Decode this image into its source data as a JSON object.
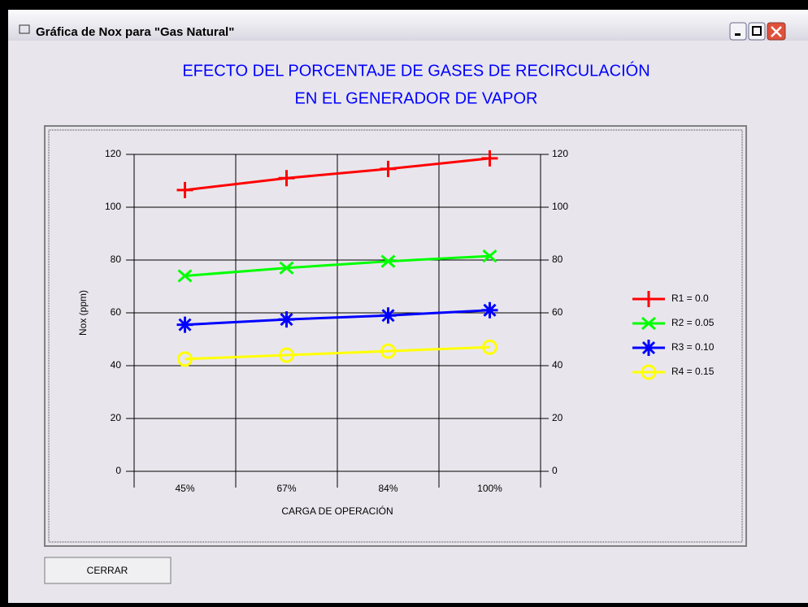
{
  "window": {
    "title": "Gráfica de Nox para \"Gas Natural\"",
    "button": "CERRAR"
  },
  "chart_data": {
    "type": "line",
    "title": [
      "EFECTO DEL PORCENTAJE DE GASES DE RECIRCULACIÓN",
      "EN EL GENERADOR DE VAPOR"
    ],
    "x_label": "CARGA DE OPERACIÓN",
    "y_label": "Nox (ppm)",
    "categories": [
      "45%",
      "67%",
      "84%",
      "100%"
    ],
    "ylim": [
      0,
      120
    ],
    "yticks": [
      0,
      20,
      40,
      60,
      80,
      100,
      120
    ],
    "grid": true,
    "series": [
      {
        "name": "R1 = 0.0",
        "color": "#ff0000",
        "marker": "plus",
        "values": [
          106.5,
          111,
          114.5,
          118.5
        ]
      },
      {
        "name": "R2 = 0.05",
        "color": "#00ff00",
        "marker": "x",
        "values": [
          74,
          77,
          79.5,
          81.5
        ]
      },
      {
        "name": "R3 = 0.10",
        "color": "#0000ff",
        "marker": "star",
        "values": [
          55.5,
          57.5,
          59,
          61
        ]
      },
      {
        "name": "R4 = 0.15",
        "color": "#ffff00",
        "marker": "circle",
        "values": [
          42.5,
          44,
          45.5,
          47
        ]
      }
    ]
  }
}
